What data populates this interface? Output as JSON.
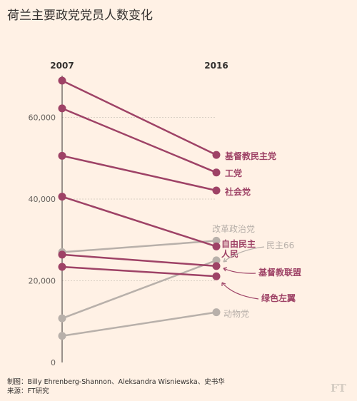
{
  "title": "荷兰主要政党党员人数变化",
  "footer": {
    "line1": "制图：Billy Ehrenberg-Shannon、Aleksandra Wisniewska、史书华",
    "line2": "来源：FT研究",
    "brand": "FT"
  },
  "colors": {
    "highlight": "#9e4266",
    "muted": "#b8b0aa",
    "grid": "#d9cfc4",
    "axis": "#33302e"
  },
  "chart_data": {
    "type": "line",
    "x": [
      "2007",
      "2016"
    ],
    "ylim": [
      0,
      70000
    ],
    "yticks": [
      0,
      20000,
      40000,
      60000
    ],
    "ytick_labels": [
      "0",
      "20,000",
      "40,000",
      "60,000"
    ],
    "grid": true,
    "series": [
      {
        "name": "基督教民主党",
        "values": [
          69000,
          50800
        ],
        "highlight": true
      },
      {
        "name": "工党",
        "values": [
          62200,
          46500
        ],
        "highlight": true
      },
      {
        "name": "社会党",
        "values": [
          50600,
          42100
        ],
        "highlight": true
      },
      {
        "name": "自由民主人民",
        "values": [
          40600,
          28400
        ],
        "highlight": true
      },
      {
        "name": "基督教联盟",
        "values": [
          26400,
          23600
        ],
        "highlight": true
      },
      {
        "name": "绿色左翼",
        "values": [
          23400,
          21100
        ],
        "highlight": true
      },
      {
        "name": "改革政治党",
        "values": [
          27000,
          29800
        ],
        "highlight": false
      },
      {
        "name": "民主66",
        "values": [
          10800,
          25000
        ],
        "highlight": false
      },
      {
        "name": "动物党",
        "values": [
          6500,
          12300
        ],
        "highlight": false
      }
    ]
  }
}
